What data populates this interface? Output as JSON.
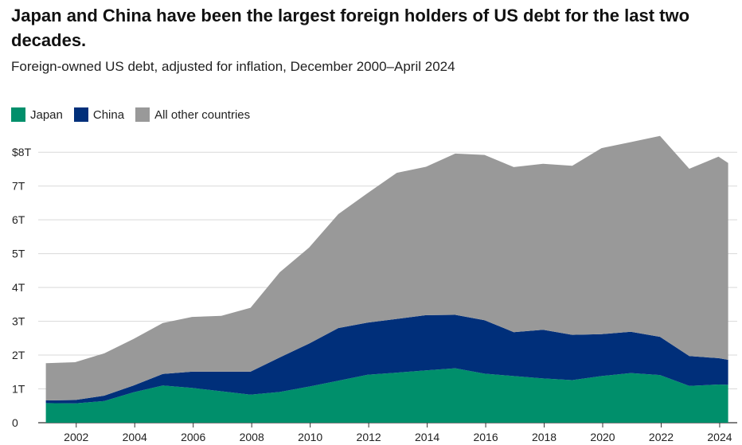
{
  "title": "Japan and China have been the largest foreign holders of US debt for the last two decades.",
  "subtitle": "Foreign-owned US debt, adjusted for inflation, December 2000–April 2024",
  "chart_data": {
    "type": "area",
    "stacked": true,
    "x": [
      2000.96,
      2001.96,
      2002.96,
      2003.96,
      2004.96,
      2005.96,
      2006.96,
      2007.96,
      2008.96,
      2009.96,
      2010.96,
      2011.96,
      2012.96,
      2013.96,
      2014.96,
      2015.96,
      2016.96,
      2017.96,
      2018.96,
      2019.96,
      2020.96,
      2021.96,
      2022.96,
      2023.96,
      2024.29
    ],
    "series": [
      {
        "name": "Japan",
        "color": "#008f6b",
        "values": [
          0.58,
          0.57,
          0.64,
          0.9,
          1.1,
          1.03,
          0.93,
          0.83,
          0.91,
          1.07,
          1.24,
          1.42,
          1.48,
          1.55,
          1.61,
          1.45,
          1.38,
          1.31,
          1.26,
          1.38,
          1.47,
          1.41,
          1.09,
          1.13,
          1.12
        ]
      },
      {
        "name": "China",
        "color": "#002f7a",
        "values": [
          0.08,
          0.1,
          0.16,
          0.2,
          0.34,
          0.48,
          0.58,
          0.68,
          1.02,
          1.27,
          1.56,
          1.54,
          1.59,
          1.63,
          1.58,
          1.58,
          1.3,
          1.44,
          1.34,
          1.24,
          1.22,
          1.13,
          0.88,
          0.78,
          0.74
        ]
      },
      {
        "name": "All other countries",
        "color": "#999999",
        "values": [
          1.1,
          1.12,
          1.25,
          1.38,
          1.51,
          1.62,
          1.65,
          1.89,
          2.52,
          2.84,
          3.37,
          3.83,
          4.32,
          4.39,
          4.77,
          4.89,
          4.88,
          4.91,
          5.0,
          5.5,
          5.61,
          5.94,
          5.54,
          5.96,
          5.82
        ]
      }
    ],
    "ylim": [
      0,
      8.5
    ],
    "yticks": [
      0,
      1,
      2,
      3,
      4,
      5,
      6,
      7,
      8
    ],
    "ytick_labels": [
      "0",
      "1T",
      "2T",
      "3T",
      "4T",
      "5T",
      "6T",
      "7T",
      "$8T"
    ],
    "xlim": [
      2000.7,
      2024.6
    ],
    "xticks": [
      2002,
      2004,
      2006,
      2008,
      2010,
      2012,
      2014,
      2016,
      2018,
      2020,
      2022,
      2024
    ],
    "xtick_labels": [
      "2002",
      "2004",
      "2006",
      "2008",
      "2010",
      "2012",
      "2014",
      "2016",
      "2018",
      "2020",
      "2022",
      "2024"
    ],
    "grid": "horizontal",
    "legend_position": "top-left"
  }
}
